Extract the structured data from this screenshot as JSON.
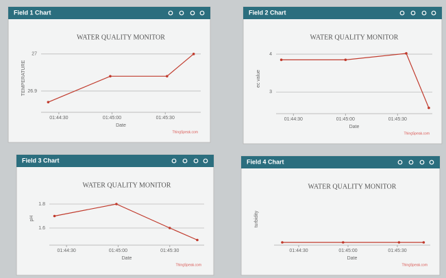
{
  "chart_data": [
    {
      "type": "line",
      "panel_title": "Field 1 Chart",
      "title": "WATER QUALITY MONITOR",
      "ylabel": "TEMPERATURE",
      "xlabel": "Date",
      "credit": "ThingSpeak.com",
      "x": [
        "01:44:24",
        "01:44:59",
        "01:45:31",
        "01:45:46"
      ],
      "values": [
        26.87,
        26.94,
        26.94,
        27.0
      ],
      "color": "#c0392b",
      "xlim": [
        "01:44:20",
        "01:45:50"
      ],
      "xticks": [
        "01:44:30",
        "01:45:00",
        "01:45:30"
      ],
      "ylim": [
        26.85,
        27.02
      ],
      "yticks": [
        26.9,
        27
      ],
      "grid": true
    },
    {
      "type": "line",
      "panel_title": "Field 2 Chart",
      "title": "WATER QUALITY MONITOR",
      "ylabel": "ec value",
      "xlabel": "Date",
      "credit": "ThingSpeak.com",
      "x": [
        "01:44:23",
        "01:45:00",
        "01:45:35",
        "01:45:48"
      ],
      "values": [
        3.85,
        3.85,
        4.02,
        2.58
      ],
      "color": "#c0392b",
      "xlim": [
        "01:44:20",
        "01:45:50"
      ],
      "xticks": [
        "01:44:30",
        "01:45:00",
        "01:45:30"
      ],
      "ylim": [
        2.5,
        4.2
      ],
      "yticks": [
        3,
        4
      ],
      "grid": true
    },
    {
      "type": "line",
      "panel_title": "Field 3 Chart",
      "title": "WATER QUALITY MONITOR",
      "ylabel": "pH",
      "xlabel": "Date",
      "credit": "ThingSpeak.com",
      "x": [
        "01:44:23",
        "01:44:59",
        "01:45:30",
        "01:45:46"
      ],
      "values": [
        1.7,
        1.8,
        1.6,
        1.5
      ],
      "color": "#c0392b",
      "xlim": [
        "01:44:20",
        "01:45:50"
      ],
      "xticks": [
        "01:44:30",
        "01:45:00",
        "01:45:30"
      ],
      "ylim": [
        1.48,
        1.88
      ],
      "yticks": [
        1.6,
        1.8
      ],
      "grid": true
    },
    {
      "type": "line",
      "panel_title": "Field 4 Chart",
      "title": "WATER QUALITY MONITOR",
      "ylabel": "turbidity",
      "xlabel": "Date",
      "credit": "ThingSpeak.com",
      "x": [
        "01:44:20",
        "01:44:57",
        "01:45:31",
        "01:45:46"
      ],
      "values": [
        0,
        0,
        0,
        0
      ],
      "color": "#c0392b",
      "xlim": [
        "01:44:15",
        "01:45:50"
      ],
      "xticks": [
        "01:44:30",
        "01:45:00",
        "01:45:30"
      ],
      "ylim": [
        0,
        1
      ],
      "yticks": [],
      "grid": true
    }
  ]
}
